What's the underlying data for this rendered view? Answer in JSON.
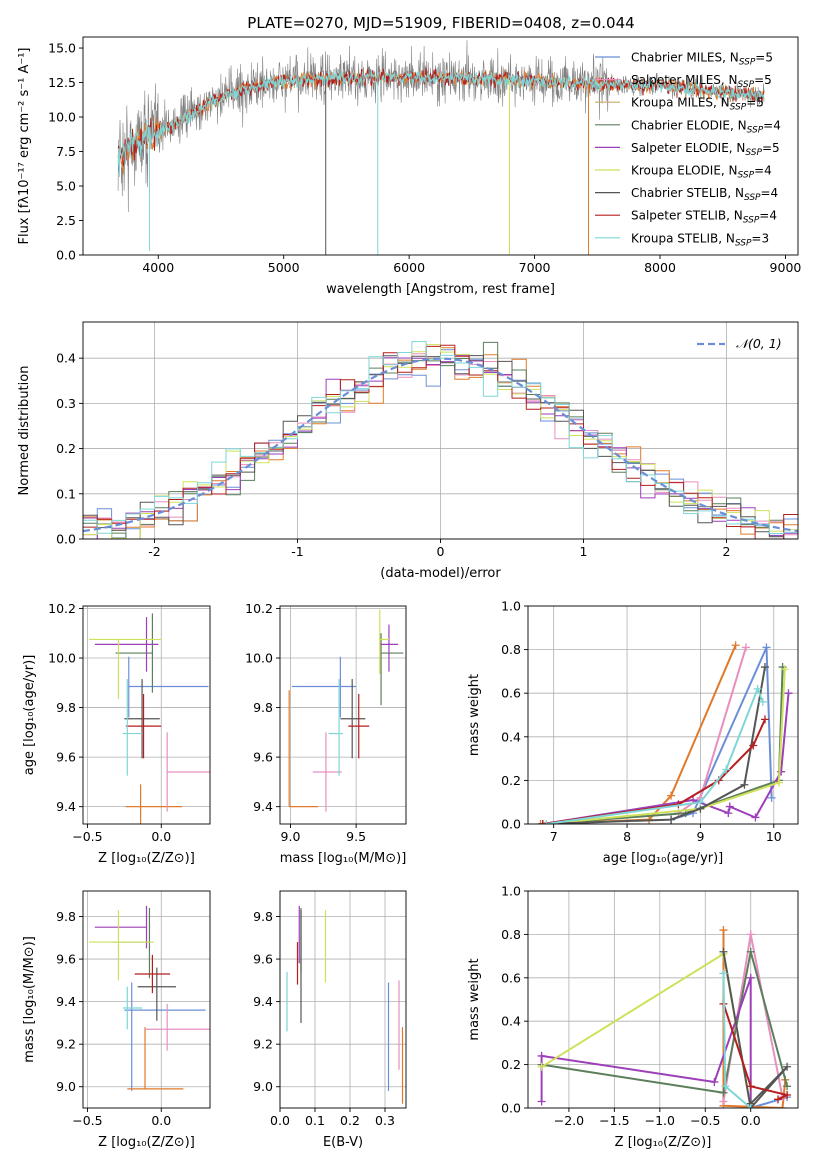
{
  "figure_title": "PLATE=0270, MJD=51909, FIBERID=0408, z=0.044",
  "colors": {
    "c0": "#6a8fd8",
    "c1": "#e07a2a",
    "c2": "#c7a86a",
    "c3": "#5b7f5b",
    "c4": "#9c3fb8",
    "c5": "#cfe15a",
    "c6": "#555555",
    "c7": "#b51f1f",
    "c8": "#7fd6d6",
    "c9": "#e88fbf",
    "gray": "#808080",
    "grid": "#b0b0b0"
  },
  "chart_data": [
    {
      "id": "spectrum",
      "type": "line",
      "title": "PLATE=0270, MJD=51909, FIBERID=0408, z=0.044",
      "xlabel": "wavelength [Angstrom, rest frame]",
      "ylabel": "Flux [fλ10⁻¹⁷ erg cm⁻² s⁻¹ A⁻¹]",
      "xlim": [
        3400,
        9100
      ],
      "ylim": [
        0,
        15.8
      ],
      "xticks": [
        4000,
        5000,
        6000,
        7000,
        8000,
        9000
      ],
      "yticks": [
        0.0,
        2.5,
        5.0,
        7.5,
        10.0,
        12.5,
        15.0
      ],
      "ytick_labels": [
        "0.0",
        "2.5",
        "5.0",
        "7.5",
        "10.0",
        "12.5",
        "15.0"
      ],
      "grid": false,
      "legend_position": "right",
      "legend": [
        {
          "model": "Chabrier MILES",
          "n": "5",
          "color": "c0"
        },
        {
          "model": "Salpeter MILES",
          "n": "5",
          "color": "c9"
        },
        {
          "model": "Kroupa MILES",
          "n": "5",
          "color": "c2"
        },
        {
          "model": "Chabrier ELODIE",
          "n": "4",
          "color": "c3"
        },
        {
          "model": "Salpeter ELODIE",
          "n": "5",
          "color": "c4"
        },
        {
          "model": "Kroupa ELODIE",
          "n": "4",
          "color": "c5"
        },
        {
          "model": "Chabrier STELIB",
          "n": "4",
          "color": "c6"
        },
        {
          "model": "Salpeter STELIB",
          "n": "4",
          "color": "c7"
        },
        {
          "model": "Kroupa STELIB",
          "n": "3",
          "color": "c8"
        }
      ],
      "continuum": [
        [
          3680,
          7.0
        ],
        [
          3800,
          8.0
        ],
        [
          3900,
          8.8
        ],
        [
          4000,
          9.0
        ],
        [
          4200,
          9.8
        ],
        [
          4400,
          11.0
        ],
        [
          4600,
          11.8
        ],
        [
          4800,
          12.3
        ],
        [
          5000,
          12.6
        ],
        [
          5500,
          12.8
        ],
        [
          6000,
          12.9
        ],
        [
          6500,
          12.8
        ],
        [
          7000,
          12.6
        ],
        [
          7500,
          12.4
        ],
        [
          8000,
          12.3
        ],
        [
          8500,
          11.8
        ],
        [
          8830,
          11.5
        ]
      ],
      "dips": [
        [
          3930,
          0.3
        ],
        [
          5335,
          0.0
        ],
        [
          5750,
          0.0
        ],
        [
          6800,
          0.0
        ],
        [
          7430,
          0.0
        ]
      ]
    },
    {
      "id": "residuals",
      "type": "histogram",
      "xlabel": "(data-model)/error",
      "ylabel": "Normed distribution",
      "xlim": [
        -2.5,
        2.5
      ],
      "ylim": [
        0,
        0.48
      ],
      "xticks": [
        -2,
        -1,
        0,
        1,
        2
      ],
      "yticks": [
        0.0,
        0.1,
        0.2,
        0.3,
        0.4
      ],
      "ytick_labels": [
        "0.0",
        "0.1",
        "0.2",
        "0.3",
        "0.4"
      ],
      "grid": true,
      "bin_width": 0.1,
      "reference_curve": {
        "name": "𝒩(0, 1)",
        "color": "c0",
        "mean": 0,
        "sigma": 1
      }
    },
    {
      "id": "age_vs_Z",
      "type": "errorbar",
      "xlabel": "Z [log₁₀(Z/Z⊙)]",
      "ylabel": "age  [log₁₀(age/yr)]",
      "xlim": [
        -0.53,
        0.33
      ],
      "ylim": [
        9.33,
        10.21
      ],
      "xticks": [
        -0.5,
        0.0
      ],
      "xtick_labels": [
        "−0.5",
        "0.0"
      ],
      "yticks": [
        9.4,
        9.6,
        9.8,
        10.0,
        10.2
      ],
      "ytick_labels": [
        "9.4",
        "9.6",
        "9.8",
        "10.0",
        "10.2"
      ],
      "grid": true,
      "points": [
        {
          "x": -0.22,
          "xl": 0.0,
          "xr": 0.54,
          "y": 9.885,
          "yl": 0.125,
          "yu": 0.12,
          "color": "c0"
        },
        {
          "x": -0.14,
          "xl": 0.1,
          "xr": 0.28,
          "y": 9.4,
          "yl": 0.14,
          "yu": 0.09,
          "color": "c1"
        },
        {
          "x": 0.04,
          "xl": 0.0,
          "xr": 0.3,
          "y": 9.54,
          "yl": 0.16,
          "yu": 0.16,
          "color": "c9"
        },
        {
          "x": -0.06,
          "xl": 0.25,
          "xr": 0.0,
          "y": 10.02,
          "yl": 0.16,
          "yu": 0.16,
          "color": "c3"
        },
        {
          "x": -0.1,
          "xl": 0.35,
          "xr": 0.08,
          "y": 10.055,
          "yl": 0.11,
          "yu": 0.11,
          "color": "c4"
        },
        {
          "x": -0.29,
          "xl": 0.2,
          "xr": 0.29,
          "y": 10.075,
          "yl": 0.24,
          "yu": 0.0,
          "color": "c5"
        },
        {
          "x": -0.13,
          "xl": 0.12,
          "xr": 0.12,
          "y": 9.755,
          "yl": 0.16,
          "yu": 0.16,
          "color": "c6"
        },
        {
          "x": -0.12,
          "xl": 0.12,
          "xr": 0.12,
          "y": 9.725,
          "yl": 0.13,
          "yu": 0.13,
          "color": "c7"
        },
        {
          "x": -0.23,
          "xl": 0.03,
          "xr": 0.1,
          "y": 9.695,
          "yl": 0.17,
          "yu": 0.22,
          "color": "c8"
        }
      ]
    },
    {
      "id": "age_vs_mass",
      "type": "errorbar",
      "xlabel": "mass [log₁₀(M/M⊙)]",
      "ylabel": "",
      "xlim": [
        8.92,
        9.88
      ],
      "ylim": [
        9.33,
        10.21
      ],
      "xticks": [
        9.0,
        9.5
      ],
      "xtick_labels": [
        "9.0",
        "9.5"
      ],
      "yticks": [
        9.4,
        9.6,
        9.8,
        10.0,
        10.2
      ],
      "ytick_labels": [
        "9.4",
        "9.6",
        "9.8",
        "10.0",
        "10.2"
      ],
      "grid": true,
      "points": [
        {
          "x": 9.38,
          "xl": 0.37,
          "xr": 0.12,
          "y": 9.885,
          "yl": 0.125,
          "yu": 0.12,
          "color": "c0"
        },
        {
          "x": 8.99,
          "xl": 0.0,
          "xr": 0.22,
          "y": 9.4,
          "yl": 0.0,
          "yu": 0.47,
          "color": "c1"
        },
        {
          "x": 9.27,
          "xl": 0.1,
          "xr": 0.12,
          "y": 9.54,
          "yl": 0.16,
          "yu": 0.16,
          "color": "c9"
        },
        {
          "x": 9.69,
          "xl": 0.0,
          "xr": 0.17,
          "y": 10.02,
          "yl": 0.21,
          "yu": 0.08,
          "color": "c3"
        },
        {
          "x": 9.75,
          "xl": 0.07,
          "xr": 0.07,
          "y": 10.055,
          "yl": 0.11,
          "yu": 0.08,
          "color": "c4"
        },
        {
          "x": 9.68,
          "xl": 0.0,
          "xr": 0.07,
          "y": 10.075,
          "yl": 0.14,
          "yu": 0.12,
          "color": "c5"
        },
        {
          "x": 9.47,
          "xl": 0.09,
          "xr": 0.1,
          "y": 9.755,
          "yl": 0.16,
          "yu": 0.16,
          "color": "c6"
        },
        {
          "x": 9.52,
          "xl": 0.08,
          "xr": 0.08,
          "y": 9.725,
          "yl": 0.13,
          "yu": 0.13,
          "color": "c7"
        },
        {
          "x": 9.37,
          "xl": 0.08,
          "xr": 0.03,
          "y": 9.695,
          "yl": 0.17,
          "yu": 0.22,
          "color": "c8"
        }
      ]
    },
    {
      "id": "weight_vs_age",
      "type": "line",
      "xlabel": "age  [log₁₀(age/yr)]",
      "ylabel": "mass weight",
      "xlim": [
        6.65,
        10.33
      ],
      "ylim": [
        0,
        1.0
      ],
      "xticks": [
        7,
        8,
        9,
        10
      ],
      "yticks": [
        0.0,
        0.2,
        0.4,
        0.6,
        0.8,
        1.0
      ],
      "ytick_labels": [
        "0.0",
        "0.2",
        "0.4",
        "0.6",
        "0.8",
        "1.0"
      ],
      "grid": true,
      "series": [
        {
          "color": "c0",
          "x": [
            8.6,
            8.9,
            9.9,
            9.97
          ],
          "y": [
            0.02,
            0.05,
            0.81,
            0.12
          ]
        },
        {
          "color": "c1",
          "x": [
            6.82,
            8.3,
            8.6,
            9.48
          ],
          "y": [
            0.0,
            0.02,
            0.13,
            0.82
          ]
        },
        {
          "color": "c9",
          "x": [
            8.7,
            9.0,
            9.62
          ],
          "y": [
            0.05,
            0.12,
            0.81
          ]
        },
        {
          "color": "c3",
          "x": [
            6.85,
            8.8,
            10.07,
            10.12
          ],
          "y": [
            0.0,
            0.05,
            0.2,
            0.72
          ]
        },
        {
          "color": "c4",
          "x": [
            6.85,
            8.9,
            9.38,
            9.4,
            9.75,
            10.1,
            10.2
          ],
          "y": [
            0.0,
            0.11,
            0.05,
            0.08,
            0.03,
            0.24,
            0.6
          ]
        },
        {
          "color": "c5",
          "x": [
            6.9,
            9.0,
            10.07,
            10.15
          ],
          "y": [
            0.0,
            0.07,
            0.19,
            0.71
          ]
        },
        {
          "color": "c6",
          "x": [
            6.85,
            8.6,
            9.0,
            9.6,
            9.88
          ],
          "y": [
            0.0,
            0.02,
            0.07,
            0.18,
            0.72
          ]
        },
        {
          "color": "c7",
          "x": [
            6.85,
            8.7,
            9.25,
            9.72,
            9.88
          ],
          "y": [
            0.0,
            0.09,
            0.2,
            0.36,
            0.48
          ]
        },
        {
          "color": "c8",
          "x": [
            6.9,
            9.0,
            9.35,
            9.78,
            9.85
          ],
          "y": [
            0.0,
            0.1,
            0.25,
            0.62,
            0.56
          ]
        }
      ]
    },
    {
      "id": "mass_vs_Z",
      "type": "errorbar",
      "xlabel": "Z [log₁₀(Z/Z⊙)]",
      "ylabel": "mass [log₁₀(M/M⊙)]",
      "xlim": [
        -0.53,
        0.33
      ],
      "ylim": [
        8.9,
        9.92
      ],
      "xticks": [
        -0.5,
        0.0
      ],
      "xtick_labels": [
        "−0.5",
        "0.0"
      ],
      "yticks": [
        9.0,
        9.2,
        9.4,
        9.6,
        9.8
      ],
      "ytick_labels": [
        "9.0",
        "9.2",
        "9.4",
        "9.6",
        "9.8"
      ],
      "grid": true,
      "points": [
        {
          "x": -0.2,
          "xl": 0.05,
          "xr": 0.5,
          "y": 9.36,
          "yl": 0.38,
          "yu": 0.13,
          "color": "c0"
        },
        {
          "x": -0.11,
          "xl": 0.12,
          "xr": 0.26,
          "y": 8.99,
          "yl": 0.0,
          "yu": 0.29,
          "color": "c1"
        },
        {
          "x": 0.04,
          "xl": 0.15,
          "xr": 0.29,
          "y": 9.27,
          "yl": 0.1,
          "yu": 0.12,
          "color": "c9"
        },
        {
          "x": -0.08,
          "xl": 0.25,
          "xr": 0.0,
          "y": 9.68,
          "yl": 0.17,
          "yu": 0.16,
          "color": "c3"
        },
        {
          "x": -0.1,
          "xl": 0.35,
          "xr": 0.0,
          "y": 9.75,
          "yl": 0.1,
          "yu": 0.1,
          "color": "c4"
        },
        {
          "x": -0.29,
          "xl": 0.2,
          "xr": 0.24,
          "y": 9.68,
          "yl": 0.18,
          "yu": 0.15,
          "color": "c5"
        },
        {
          "x": -0.03,
          "xl": 0.13,
          "xr": 0.13,
          "y": 9.47,
          "yl": 0.16,
          "yu": 0.09,
          "color": "c6"
        },
        {
          "x": -0.06,
          "xl": 0.12,
          "xr": 0.12,
          "y": 9.53,
          "yl": 0.09,
          "yu": 0.09,
          "color": "c7"
        },
        {
          "x": -0.23,
          "xl": 0.03,
          "xr": 0.1,
          "y": 9.37,
          "yl": 0.1,
          "yu": 0.1,
          "color": "c8"
        }
      ]
    },
    {
      "id": "mass_vs_ebv",
      "type": "errorbar",
      "xlabel": "E(B-V)",
      "ylabel": "",
      "xlim": [
        0.0,
        0.36
      ],
      "ylim": [
        8.9,
        9.92
      ],
      "xticks": [
        0.0,
        0.1,
        0.2,
        0.3
      ],
      "xtick_labels": [
        "0.0",
        "0.1",
        "0.2",
        "0.3"
      ],
      "yticks": [
        9.0,
        9.2,
        9.4,
        9.6,
        9.8
      ],
      "ytick_labels": [
        "9.0",
        "9.2",
        "9.4",
        "9.6",
        "9.8"
      ],
      "grid": true,
      "points": [
        {
          "x": 0.31,
          "y": 9.23,
          "yl": 0.25,
          "yu": 0.26,
          "color": "c0"
        },
        {
          "x": 0.35,
          "y": 9.05,
          "yl": 0.13,
          "yu": 0.23,
          "color": "c1"
        },
        {
          "x": 0.34,
          "y": 9.2,
          "yl": 0.12,
          "yu": 0.3,
          "color": "c9"
        },
        {
          "x": 0.06,
          "y": 9.64,
          "yl": 0.1,
          "yu": 0.2,
          "color": "c3"
        },
        {
          "x": 0.055,
          "y": 9.68,
          "yl": 0.1,
          "yu": 0.17,
          "color": "c4"
        },
        {
          "x": 0.13,
          "y": 9.66,
          "yl": 0.17,
          "yu": 0.17,
          "color": "c5"
        },
        {
          "x": 0.06,
          "y": 9.56,
          "yl": 0.26,
          "yu": 0.27,
          "color": "c6"
        },
        {
          "x": 0.05,
          "y": 9.58,
          "yl": 0.1,
          "yu": 0.1,
          "color": "c7"
        },
        {
          "x": 0.02,
          "y": 9.4,
          "yl": 0.14,
          "yu": 0.14,
          "color": "c8"
        }
      ]
    },
    {
      "id": "weight_vs_Z",
      "type": "line",
      "xlabel": "Z [log₁₀(Z/Z⊙)]",
      "ylabel": "mass weight",
      "xlim": [
        -2.45,
        0.52
      ],
      "ylim": [
        0,
        1.0
      ],
      "xticks": [
        -2.0,
        -1.5,
        -1.0,
        -0.5,
        0.0
      ],
      "xtick_labels": [
        "−2.0",
        "−1.5",
        "−1.0",
        "−0.5",
        "0.0"
      ],
      "yticks": [
        0.0,
        0.2,
        0.4,
        0.6,
        0.8,
        1.0
      ],
      "ytick_labels": [
        "0.0",
        "0.2",
        "0.4",
        "0.6",
        "0.8",
        "1.0"
      ],
      "grid": true,
      "series": [
        {
          "color": "c0",
          "x": [
            0.0,
            0.4,
            0.0
          ],
          "y": [
            0.0,
            0.05,
            0.0
          ],
          "jagged": true
        },
        {
          "color": "c1",
          "x": [
            -0.3,
            -0.3,
            0.35,
            0.38
          ],
          "y": [
            0.82,
            0.01,
            0.0,
            0.13
          ],
          "jagged": true
        },
        {
          "color": "c9",
          "x": [
            -0.3,
            0.0,
            0.35
          ],
          "y": [
            0.03,
            0.8,
            0.05
          ],
          "jagged": true
        },
        {
          "color": "c3",
          "x": [
            -2.3,
            -0.3,
            0.0,
            0.4
          ],
          "y": [
            0.2,
            0.07,
            0.72,
            0.1
          ]
        },
        {
          "color": "c4",
          "x": [
            -2.3,
            -2.3,
            -0.4,
            0.0,
            0.0
          ],
          "y": [
            0.03,
            0.24,
            0.12,
            0.6,
            0.0
          ]
        },
        {
          "color": "c5",
          "x": [
            -2.3,
            -0.3,
            0.0
          ],
          "y": [
            0.19,
            0.71,
            0.0
          ]
        },
        {
          "color": "c6",
          "x": [
            -0.3,
            0.0,
            0.4,
            0.0
          ],
          "y": [
            0.72,
            0.0,
            0.19,
            0.02
          ],
          "jagged": true
        },
        {
          "color": "c7",
          "x": [
            -0.3,
            0.0,
            0.4,
            0.3
          ],
          "y": [
            0.48,
            0.1,
            0.06,
            0.04
          ],
          "jagged": true
        },
        {
          "color": "c8",
          "x": [
            -0.3,
            -0.28,
            0.0
          ],
          "y": [
            0.62,
            0.1,
            0.0
          ]
        }
      ]
    }
  ]
}
